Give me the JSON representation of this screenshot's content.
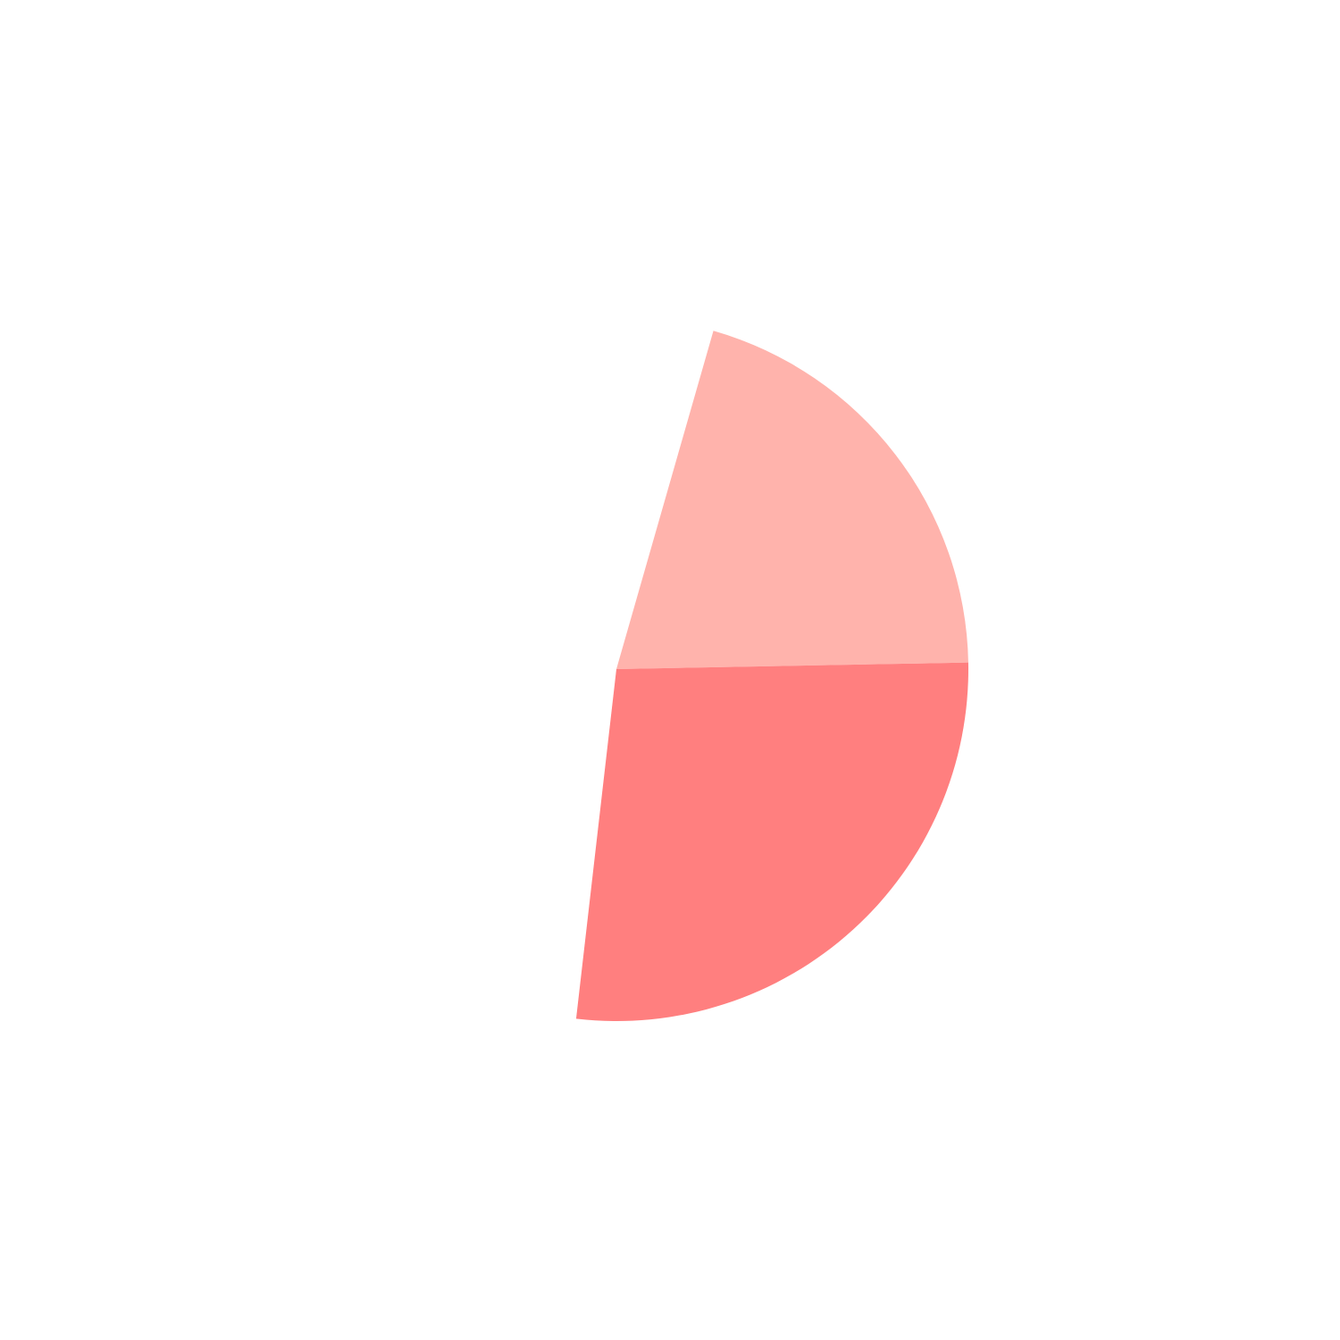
{
  "chart_data": {
    "type": "pie",
    "title": "",
    "slices": [
      {
        "value": 20.26,
        "color": "#FFB3AC"
      },
      {
        "value": 27.12,
        "color": "#FF7F7F"
      }
    ],
    "start_angle_deg": -74,
    "direction": "clockwise",
    "total": 100,
    "legend": "none"
  }
}
